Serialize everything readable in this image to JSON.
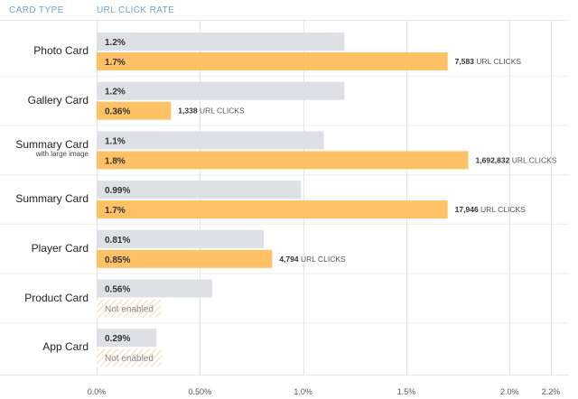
{
  "headers": {
    "card_type": "CARD TYPE",
    "url_click_rate": "URL CLICK RATE"
  },
  "colors": {
    "header_text": "#6fa3c7",
    "gray_bar": "#dde1e5",
    "orange_bar": "#ffc166",
    "grid": "#e4e4e4",
    "hatch": "#f5deb0"
  },
  "chart_data": {
    "type": "bar",
    "orientation": "horizontal",
    "title": "",
    "xlabel": "URL CLICK RATE",
    "ylabel": "CARD TYPE",
    "xlim": [
      0,
      2.2
    ],
    "x_ticks": [
      0,
      0.5,
      1.0,
      1.5,
      2.0,
      2.2
    ],
    "x_tick_labels": [
      "0.0%",
      "0.50%",
      "1.0%",
      "1.5%",
      "2.0%",
      "2.2%"
    ],
    "grid": true,
    "categories": [
      {
        "name": "Photo Card",
        "sub": "",
        "gray": 1.2,
        "gray_label": "1.2%",
        "orange": 1.7,
        "orange_label": "1.7%",
        "clicks": "7,583",
        "clicks_suffix": "URL CLICKS",
        "enabled": true
      },
      {
        "name": "Gallery Card",
        "sub": "",
        "gray": 1.2,
        "gray_label": "1.2%",
        "orange": 0.36,
        "orange_label": "0.36%",
        "clicks": "1,338",
        "clicks_suffix": "URL CLICKS",
        "enabled": true
      },
      {
        "name": "Summary Card",
        "sub": "with large image",
        "gray": 1.1,
        "gray_label": "1.1%",
        "orange": 1.8,
        "orange_label": "1.8%",
        "clicks": "1,692,832",
        "clicks_suffix": "URL CLICKS",
        "enabled": true
      },
      {
        "name": "Summary Card",
        "sub": "",
        "gray": 0.99,
        "gray_label": "0.99%",
        "orange": 1.7,
        "orange_label": "1.7%",
        "clicks": "17,946",
        "clicks_suffix": "URL CLICKS",
        "enabled": true
      },
      {
        "name": "Player Card",
        "sub": "",
        "gray": 0.81,
        "gray_label": "0.81%",
        "orange": 0.85,
        "orange_label": "0.85%",
        "clicks": "4,794",
        "clicks_suffix": "URL CLICKS",
        "enabled": true
      },
      {
        "name": "Product Card",
        "sub": "",
        "gray": 0.56,
        "gray_label": "0.56%",
        "orange": null,
        "orange_label": "Not enabled",
        "clicks": "",
        "clicks_suffix": "",
        "enabled": false
      },
      {
        "name": "App Card",
        "sub": "",
        "gray": 0.29,
        "gray_label": "0.29%",
        "orange": null,
        "orange_label": "Not enabled",
        "clicks": "",
        "clicks_suffix": "",
        "enabled": false
      }
    ]
  }
}
